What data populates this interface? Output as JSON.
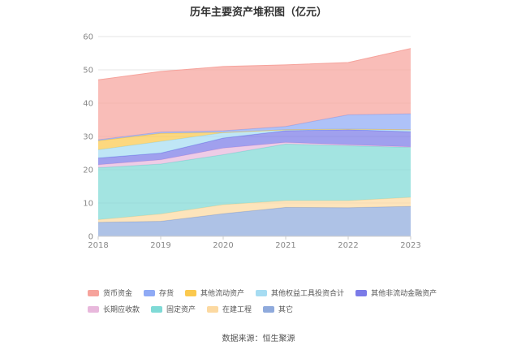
{
  "chart_data": {
    "type": "area",
    "stacked": true,
    "title": "历年主要资产堆积图（亿元）",
    "x": [
      "2018",
      "2019",
      "2020",
      "2021",
      "2022",
      "2023"
    ],
    "ylim": [
      0,
      60
    ],
    "yticks": [
      "0",
      "10",
      "20",
      "30",
      "40",
      "50",
      "60"
    ],
    "xlabel": "",
    "ylabel": "",
    "grid": true,
    "legend_position": "bottom",
    "series": [
      {
        "name": "其它",
        "color": "#8faadc",
        "values": [
          4.2,
          4.5,
          6.8,
          8.7,
          8.6,
          9.0
        ]
      },
      {
        "name": "在建工程",
        "color": "#fcd9a1",
        "values": [
          0.8,
          2.2,
          2.7,
          2.0,
          2.1,
          2.7
        ]
      },
      {
        "name": "固定资产",
        "color": "#7fdad6",
        "values": [
          15.6,
          15.0,
          15.0,
          17.0,
          16.5,
          15.0
        ]
      },
      {
        "name": "长期应收款",
        "color": "#e8b8dc",
        "values": [
          0.9,
          1.3,
          2.0,
          0.5,
          0.3,
          0.2
        ]
      },
      {
        "name": "其他非流动金融资产",
        "color": "#7b7be8",
        "values": [
          2.0,
          2.0,
          3.0,
          3.5,
          4.5,
          4.5
        ]
      },
      {
        "name": "其他权益工具投资合计",
        "color": "#a6dcf2",
        "values": [
          2.5,
          3.5,
          1.6,
          0.3,
          0.2,
          0.6
        ]
      },
      {
        "name": "其他流动资产",
        "color": "#fbc94e",
        "values": [
          2.7,
          2.4,
          0.1,
          0.0,
          0.0,
          0.0
        ]
      },
      {
        "name": "存货",
        "color": "#8faaf5",
        "values": [
          0.3,
          0.4,
          0.5,
          1.0,
          4.3,
          4.8
        ]
      },
      {
        "name": "货币资金",
        "color": "#f6a39c",
        "values": [
          18.0,
          18.2,
          19.3,
          18.5,
          15.7,
          19.6
        ]
      }
    ],
    "legend_rows": [
      [
        {
          "name": "货币资金",
          "color": "#f6a39c"
        },
        {
          "name": "存货",
          "color": "#8faaf5"
        },
        {
          "name": "其他流动资产",
          "color": "#fbc94e"
        },
        {
          "name": "其他权益工具投资合计",
          "color": "#a6dcf2"
        },
        {
          "name": "其他非流动金融资产",
          "color": "#7b7be8"
        }
      ],
      [
        {
          "name": "长期应收款",
          "color": "#e8b8dc"
        },
        {
          "name": "固定资产",
          "color": "#7fdad6"
        },
        {
          "name": "在建工程",
          "color": "#fcd9a1"
        },
        {
          "name": "其它",
          "color": "#8faadc"
        }
      ]
    ],
    "source": "数据来源：恒生聚源"
  }
}
